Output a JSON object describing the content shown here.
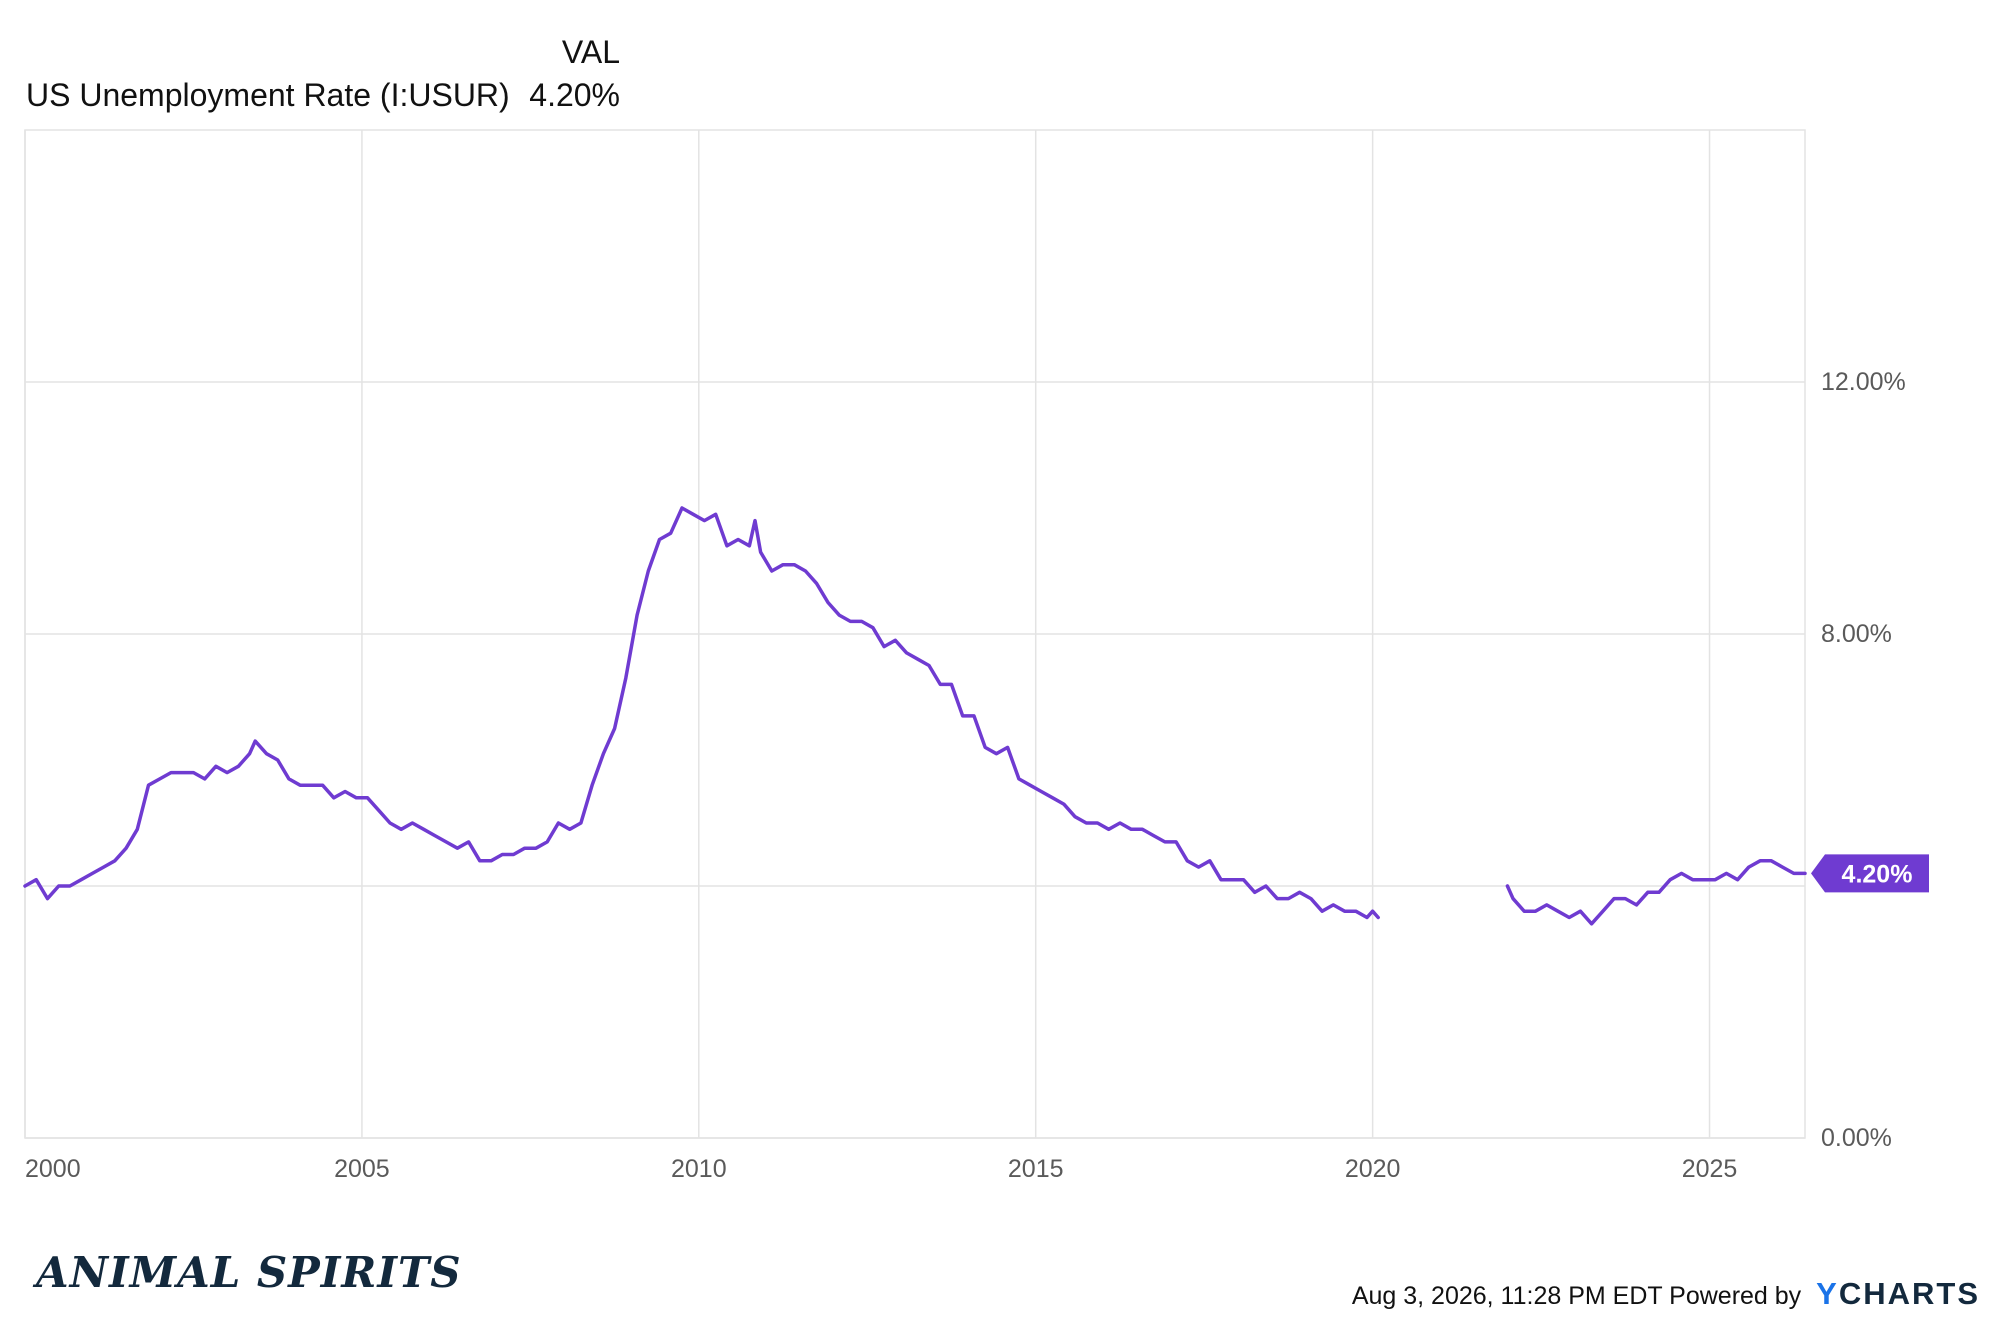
{
  "legend": {
    "header": "VAL",
    "series_name": "US Unemployment Rate (I:USUR)",
    "series_value": "4.20%"
  },
  "last_value_label": "4.20%",
  "footer": {
    "timestamp": "Aug 3, 2026, 11:28 PM EDT",
    "powered_by": "Powered by",
    "logo_prefix": "Y",
    "logo_rest": "CHARTS"
  },
  "brand": "ANIMAL SPIRITS",
  "colors": {
    "series": "#6f3bd1",
    "grid": "#e3e3e3",
    "axis_text": "#5a5a5a",
    "brand": "#13293d"
  },
  "chart_data": {
    "type": "line",
    "title": "",
    "xlabel": "",
    "ylabel": "",
    "x_ticks": [
      "2000",
      "2005",
      "2010",
      "2015",
      "2020",
      "2025"
    ],
    "y_ticks": [
      "0.00%",
      "4.00%",
      "8.00%",
      "12.00%"
    ],
    "y_tick_labels_shown": [
      "0.00%",
      "8.00%",
      "12.00%"
    ],
    "xlim": [
      "2000-01",
      "2026-06"
    ],
    "ylim": [
      0,
      16
    ],
    "grid": true,
    "y_axis_side": "right",
    "series": [
      {
        "name": "US Unemployment Rate (I:USUR)",
        "color": "#6f3bd1",
        "segments": [
          {
            "points": [
              [
                "2000-01",
                4.0
              ],
              [
                "2000-03",
                4.1
              ],
              [
                "2000-05",
                3.8
              ],
              [
                "2000-07",
                4.0
              ],
              [
                "2000-09",
                4.0
              ],
              [
                "2000-11",
                4.1
              ],
              [
                "2001-01",
                4.2
              ],
              [
                "2001-03",
                4.3
              ],
              [
                "2001-05",
                4.4
              ],
              [
                "2001-07",
                4.6
              ],
              [
                "2001-09",
                4.9
              ],
              [
                "2001-11",
                5.6
              ],
              [
                "2002-01",
                5.7
              ],
              [
                "2002-03",
                5.8
              ],
              [
                "2002-05",
                5.8
              ],
              [
                "2002-07",
                5.8
              ],
              [
                "2002-09",
                5.7
              ],
              [
                "2002-11",
                5.9
              ],
              [
                "2003-01",
                5.8
              ],
              [
                "2003-03",
                5.9
              ],
              [
                "2003-05",
                6.1
              ],
              [
                "2003-06",
                6.3
              ],
              [
                "2003-08",
                6.1
              ],
              [
                "2003-10",
                6.0
              ],
              [
                "2003-12",
                5.7
              ],
              [
                "2004-02",
                5.6
              ],
              [
                "2004-04",
                5.6
              ],
              [
                "2004-06",
                5.6
              ],
              [
                "2004-08",
                5.4
              ],
              [
                "2004-10",
                5.5
              ],
              [
                "2004-12",
                5.4
              ],
              [
                "2005-02",
                5.4
              ],
              [
                "2005-04",
                5.2
              ],
              [
                "2005-06",
                5.0
              ],
              [
                "2005-08",
                4.9
              ],
              [
                "2005-10",
                5.0
              ],
              [
                "2005-12",
                4.9
              ],
              [
                "2006-02",
                4.8
              ],
              [
                "2006-04",
                4.7
              ],
              [
                "2006-06",
                4.6
              ],
              [
                "2006-08",
                4.7
              ],
              [
                "2006-10",
                4.4
              ],
              [
                "2006-12",
                4.4
              ],
              [
                "2007-02",
                4.5
              ],
              [
                "2007-04",
                4.5
              ],
              [
                "2007-06",
                4.6
              ],
              [
                "2007-08",
                4.6
              ],
              [
                "2007-10",
                4.7
              ],
              [
                "2007-12",
                5.0
              ],
              [
                "2008-02",
                4.9
              ],
              [
                "2008-04",
                5.0
              ],
              [
                "2008-06",
                5.6
              ],
              [
                "2008-08",
                6.1
              ],
              [
                "2008-10",
                6.5
              ],
              [
                "2008-12",
                7.3
              ],
              [
                "2009-02",
                8.3
              ],
              [
                "2009-04",
                9.0
              ],
              [
                "2009-06",
                9.5
              ],
              [
                "2009-08",
                9.6
              ],
              [
                "2009-10",
                10.0
              ],
              [
                "2009-12",
                9.9
              ],
              [
                "2010-02",
                9.8
              ],
              [
                "2010-04",
                9.9
              ],
              [
                "2010-06",
                9.4
              ],
              [
                "2010-08",
                9.5
              ],
              [
                "2010-10",
                9.4
              ],
              [
                "2010-11",
                9.8
              ],
              [
                "2010-12",
                9.3
              ],
              [
                "2011-02",
                9.0
              ],
              [
                "2011-04",
                9.1
              ],
              [
                "2011-06",
                9.1
              ],
              [
                "2011-08",
                9.0
              ],
              [
                "2011-10",
                8.8
              ],
              [
                "2011-12",
                8.5
              ],
              [
                "2012-02",
                8.3
              ],
              [
                "2012-04",
                8.2
              ],
              [
                "2012-06",
                8.2
              ],
              [
                "2012-08",
                8.1
              ],
              [
                "2012-10",
                7.8
              ],
              [
                "2012-12",
                7.9
              ],
              [
                "2013-02",
                7.7
              ],
              [
                "2013-04",
                7.6
              ],
              [
                "2013-06",
                7.5
              ],
              [
                "2013-08",
                7.2
              ],
              [
                "2013-10",
                7.2
              ],
              [
                "2013-12",
                6.7
              ],
              [
                "2014-02",
                6.7
              ],
              [
                "2014-04",
                6.2
              ],
              [
                "2014-06",
                6.1
              ],
              [
                "2014-08",
                6.2
              ],
              [
                "2014-10",
                5.7
              ],
              [
                "2014-12",
                5.6
              ],
              [
                "2015-02",
                5.5
              ],
              [
                "2015-04",
                5.4
              ],
              [
                "2015-06",
                5.3
              ],
              [
                "2015-08",
                5.1
              ],
              [
                "2015-10",
                5.0
              ],
              [
                "2015-12",
                5.0
              ],
              [
                "2016-02",
                4.9
              ],
              [
                "2016-04",
                5.0
              ],
              [
                "2016-06",
                4.9
              ],
              [
                "2016-08",
                4.9
              ],
              [
                "2016-10",
                4.8
              ],
              [
                "2016-12",
                4.7
              ],
              [
                "2017-02",
                4.7
              ],
              [
                "2017-04",
                4.4
              ],
              [
                "2017-06",
                4.3
              ],
              [
                "2017-08",
                4.4
              ],
              [
                "2017-10",
                4.1
              ],
              [
                "2017-12",
                4.1
              ],
              [
                "2018-02",
                4.1
              ],
              [
                "2018-04",
                3.9
              ],
              [
                "2018-06",
                4.0
              ],
              [
                "2018-08",
                3.8
              ],
              [
                "2018-10",
                3.8
              ],
              [
                "2018-12",
                3.9
              ],
              [
                "2019-02",
                3.8
              ],
              [
                "2019-04",
                3.6
              ],
              [
                "2019-06",
                3.7
              ],
              [
                "2019-08",
                3.6
              ],
              [
                "2019-10",
                3.6
              ],
              [
                "2019-12",
                3.5
              ],
              [
                "2020-01",
                3.6
              ],
              [
                "2020-02",
                3.5
              ]
            ]
          },
          {
            "points": [
              [
                "2022-01",
                4.0
              ],
              [
                "2022-02",
                3.8
              ],
              [
                "2022-04",
                3.6
              ],
              [
                "2022-06",
                3.6
              ],
              [
                "2022-08",
                3.7
              ],
              [
                "2022-10",
                3.6
              ],
              [
                "2022-12",
                3.5
              ],
              [
                "2023-02",
                3.6
              ],
              [
                "2023-04",
                3.4
              ],
              [
                "2023-06",
                3.6
              ],
              [
                "2023-08",
                3.8
              ],
              [
                "2023-10",
                3.8
              ],
              [
                "2023-12",
                3.7
              ],
              [
                "2024-02",
                3.9
              ],
              [
                "2024-04",
                3.9
              ],
              [
                "2024-06",
                4.1
              ],
              [
                "2024-08",
                4.2
              ],
              [
                "2024-10",
                4.1
              ],
              [
                "2024-12",
                4.1
              ],
              [
                "2025-02",
                4.1
              ],
              [
                "2025-04",
                4.2
              ],
              [
                "2025-06",
                4.1
              ],
              [
                "2025-08",
                4.3
              ],
              [
                "2025-10",
                4.4
              ],
              [
                "2025-12",
                4.4
              ],
              [
                "2026-02",
                4.3
              ],
              [
                "2026-04",
                4.2
              ],
              [
                "2026-06",
                4.2
              ]
            ]
          }
        ]
      }
    ]
  }
}
